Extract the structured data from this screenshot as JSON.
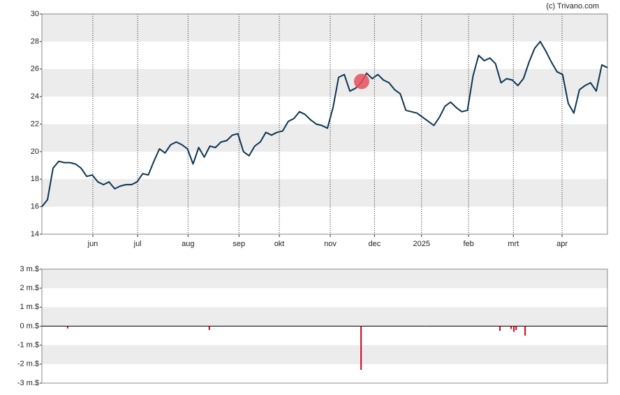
{
  "source": "(c) Trivano.com",
  "chart_data": [
    {
      "type": "line",
      "xlim": [
        0,
        101
      ],
      "xticks": [
        {
          "value": 9.1,
          "label": "jun"
        },
        {
          "value": 17.1,
          "label": "jul"
        },
        {
          "value": 26.1,
          "label": "aug"
        },
        {
          "value": 35.2,
          "label": "sep"
        },
        {
          "value": 42.4,
          "label": "okt"
        },
        {
          "value": 51.5,
          "label": "nov"
        },
        {
          "value": 59.4,
          "label": "dec"
        },
        {
          "value": 67.8,
          "label": "2025"
        },
        {
          "value": 76.2,
          "label": "feb"
        },
        {
          "value": 84.2,
          "label": "mrt"
        },
        {
          "value": 92.9,
          "label": "apr"
        }
      ],
      "ylim": [
        14,
        30
      ],
      "yticks": [
        14,
        16,
        18,
        20,
        22,
        24,
        26,
        28,
        30
      ],
      "xgrid": true,
      "series": [
        {
          "color": "#0d3553",
          "values": [
            16.0,
            16.5,
            18.8,
            19.3,
            19.2,
            19.2,
            19.1,
            18.8,
            18.2,
            18.3,
            17.8,
            17.6,
            17.8,
            17.3,
            17.5,
            17.6,
            17.6,
            17.8,
            18.4,
            18.3,
            19.3,
            20.2,
            19.9,
            20.5,
            20.7,
            20.5,
            20.2,
            19.1,
            20.3,
            19.6,
            20.4,
            20.3,
            20.7,
            20.8,
            21.2,
            21.3,
            20.0,
            19.7,
            20.4,
            20.7,
            21.4,
            21.2,
            21.4,
            21.5,
            22.2,
            22.4,
            22.9,
            22.7,
            22.3,
            22.0,
            21.9,
            21.7,
            23.2,
            25.4,
            25.6,
            24.4,
            24.6,
            25.0,
            25.7,
            25.3,
            25.6,
            25.2,
            25.0,
            24.5,
            24.2,
            23.0,
            22.9,
            22.8,
            22.5,
            22.2,
            21.9,
            22.5,
            23.3,
            23.6,
            23.2,
            22.9,
            23.0,
            25.5,
            27.0,
            26.6,
            26.8,
            26.4,
            25.0,
            25.3,
            25.2,
            24.8,
            25.3,
            26.5,
            27.5,
            28.0,
            27.3,
            26.5,
            25.8,
            25.6,
            23.5,
            22.8,
            24.5,
            24.8,
            25.0,
            24.4,
            26.3,
            26.1
          ]
        }
      ],
      "markers": [
        {
          "x": 57.1,
          "value": 25.1,
          "color": "#e8505b"
        }
      ]
    },
    {
      "type": "bar",
      "xlim": [
        0,
        101
      ],
      "ylim": [
        -3,
        3
      ],
      "yticks": [
        {
          "value": 3,
          "label": "3 m.$"
        },
        {
          "value": 2,
          "label": "2 m.$"
        },
        {
          "value": 1,
          "label": "1 m.$"
        },
        {
          "value": 0,
          "label": "0 m.$"
        },
        {
          "value": -1,
          "label": "-1 m.$"
        },
        {
          "value": -2,
          "label": "-2 m.$"
        },
        {
          "value": -3,
          "label": "-3 m.$"
        }
      ],
      "color": "#d0021b",
      "x": [
        4.6,
        29.9,
        57.0,
        68.6,
        81.8,
        83.8,
        84.3,
        84.7,
        86.3
      ],
      "values": [
        -0.12,
        -0.2,
        -2.3,
        -0.02,
        -0.25,
        -0.15,
        -0.3,
        -0.2,
        -0.5
      ]
    }
  ]
}
